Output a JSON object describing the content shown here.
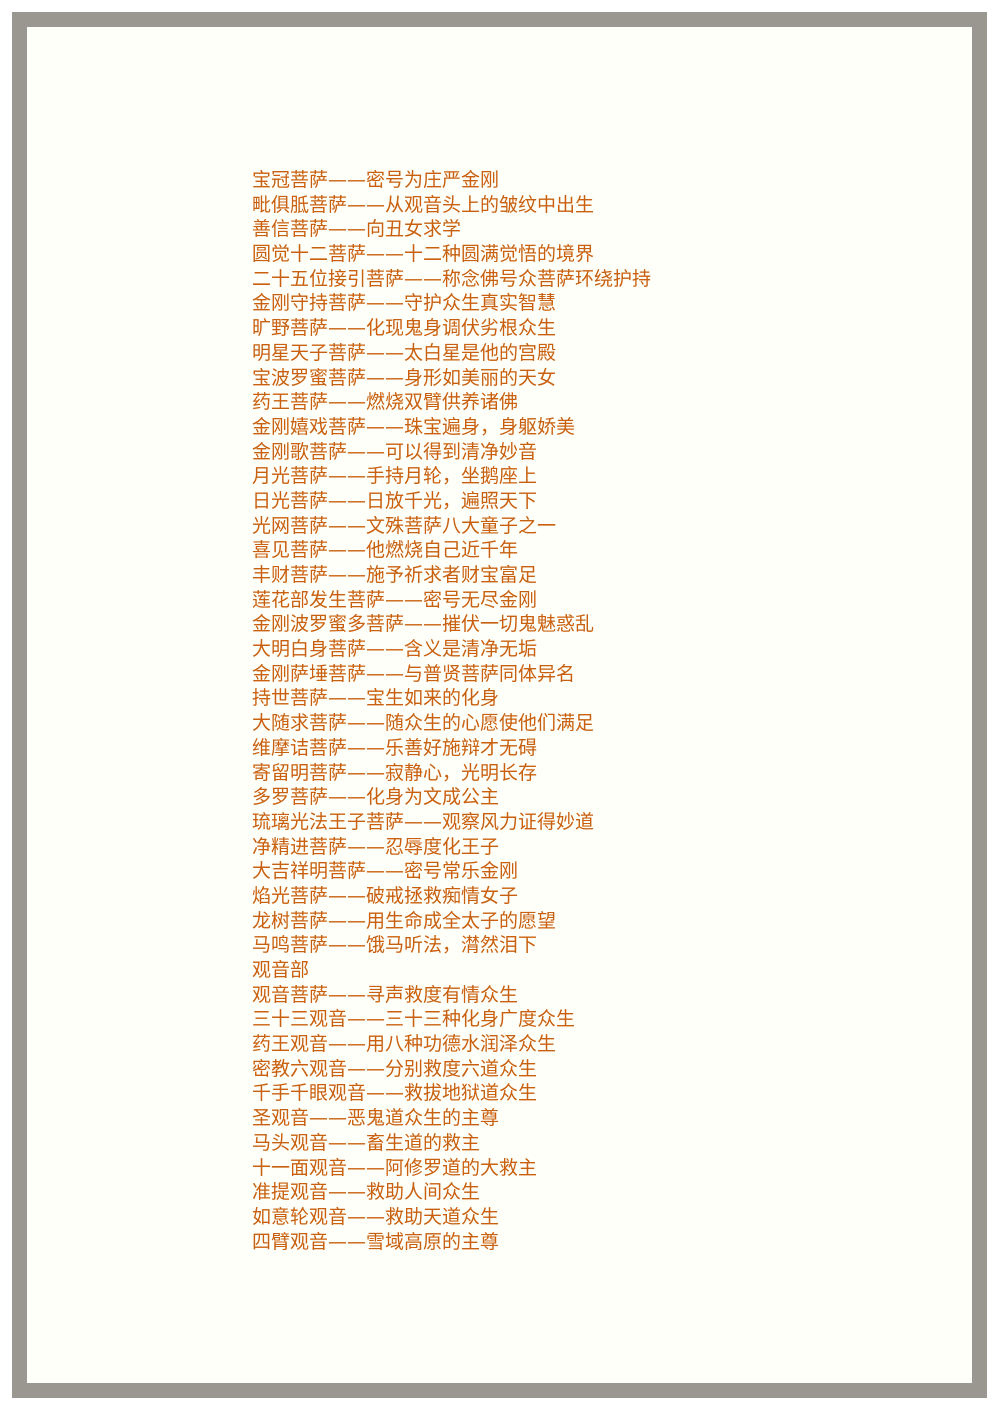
{
  "colors": {
    "text": "#c8600f",
    "frame": "#9a9690",
    "paper": "#fffffa"
  },
  "lines": [
    "宝冠菩萨——密号为庄严金刚",
    "毗俱胝菩萨——从观音头上的皱纹中出生",
    "善信菩萨——向丑女求学",
    "圆觉十二菩萨——十二种圆满觉悟的境界",
    "二十五位接引菩萨——称念佛号众菩萨环绕护持",
    "金刚守持菩萨——守护众生真实智慧",
    "旷野菩萨——化现鬼身调伏劣根众生",
    "明星天子菩萨——太白星是他的宫殿",
    "宝波罗蜜菩萨——身形如美丽的天女",
    "药王菩萨——燃烧双臂供养诸佛",
    "金刚嬉戏菩萨——珠宝遍身，身躯娇美",
    "金刚歌菩萨——可以得到清净妙音",
    "月光菩萨——手持月轮，坐鹅座上",
    "日光菩萨——日放千光，遍照天下",
    "光网菩萨——文殊菩萨八大童子之一",
    "喜见菩萨——他燃烧自己近千年",
    "丰财菩萨——施予祈求者财宝富足",
    "莲花部发生菩萨——密号无尽金刚",
    "金刚波罗蜜多菩萨——摧伏一切鬼魅惑乱",
    "大明白身菩萨——含义是清净无垢",
    "金刚萨埵菩萨——与普贤菩萨同体异名",
    "持世菩萨——宝生如来的化身",
    "大随求菩萨——随众生的心愿使他们满足",
    "维摩诘菩萨——乐善好施辩才无碍",
    "寄留明菩萨——寂静心，光明长存",
    "多罗菩萨——化身为文成公主",
    "琉璃光法王子菩萨——观察风力证得妙道",
    "净精进菩萨——忍辱度化王子",
    "大吉祥明菩萨——密号常乐金刚",
    "焰光菩萨——破戒拯救痴情女子",
    "龙树菩萨——用生命成全太子的愿望",
    "马鸣菩萨——饿马听法，潸然泪下",
    "观音部",
    "观音菩萨——寻声救度有情众生",
    "三十三观音——三十三种化身广度众生",
    "药王观音——用八种功德水润泽众生",
    "密教六观音——分别救度六道众生",
    "千手千眼观音——救拔地狱道众生",
    "圣观音——恶鬼道众生的主尊",
    "马头观音——畜生道的救主",
    "十一面观音——阿修罗道的大救主",
    "准提观音——救助人间众生",
    "如意轮观音——救助天道众生",
    "四臂观音——雪域高原的主尊"
  ]
}
